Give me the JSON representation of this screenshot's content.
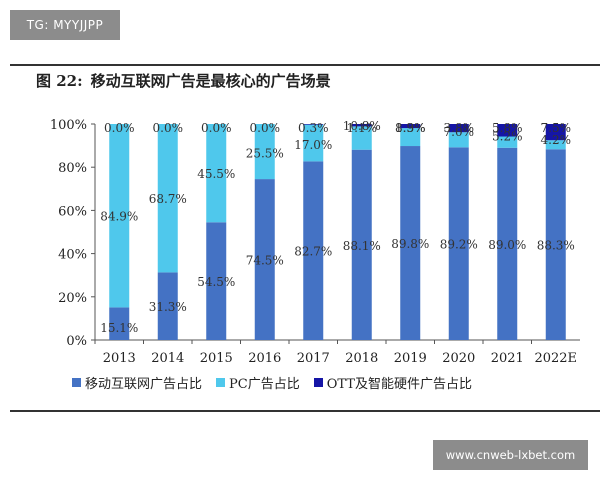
{
  "watermark_top": "TG: MYYJJPP",
  "watermark_bottom": "www.cnweb-lxbet.com",
  "figure": {
    "number": "图 22:",
    "title": "移动互联网广告是最核心的广告场景"
  },
  "colors": {
    "mobile": "#4472C4",
    "pc": "#4FC8EC",
    "ott": "#1515A6"
  },
  "chart_data": {
    "type": "bar",
    "stacked": true,
    "percent_stacked": true,
    "categories": [
      "2013",
      "2014",
      "2015",
      "2016",
      "2017",
      "2018",
      "2019",
      "2020",
      "2021",
      "2022E"
    ],
    "series": [
      {
        "name": "移动互联网广告占比",
        "values": [
          15.1,
          31.3,
          54.5,
          74.5,
          82.7,
          88.1,
          89.8,
          89.2,
          89.0,
          88.3
        ],
        "labels": [
          "15.1%",
          "31.3%",
          "54.5%",
          "74.5%",
          "82.7%",
          "88.1%",
          "89.8%",
          "89.2%",
          "89.0%",
          "88.3%"
        ]
      },
      {
        "name": "PC广告占比",
        "values": [
          84.9,
          68.7,
          45.5,
          25.5,
          17.0,
          10.8,
          8.3,
          7.0,
          5.2,
          4.2
        ],
        "labels": [
          "84.9%",
          "68.7%",
          "45.5%",
          "25.5%",
          "17.0%",
          "10.8%",
          "8.3%",
          "7.0%",
          "5.2%",
          "4.2%"
        ]
      },
      {
        "name": "OTT及智能硬件广告占比",
        "values": [
          0.0,
          0.0,
          0.0,
          0.0,
          0.3,
          1.1,
          1.9,
          3.8,
          5.8,
          7.5
        ],
        "labels": [
          "0.0%",
          "0.0%",
          "0.0%",
          "0.0%",
          "0.3%",
          "1.1%",
          "1.9%",
          "3.8%",
          "5.8%",
          "7.5%"
        ]
      }
    ],
    "ylim": [
      0,
      100
    ],
    "yticks": [
      "0%",
      "20%",
      "40%",
      "60%",
      "80%",
      "100%"
    ],
    "legend_position": "bottom",
    "grid": false
  }
}
